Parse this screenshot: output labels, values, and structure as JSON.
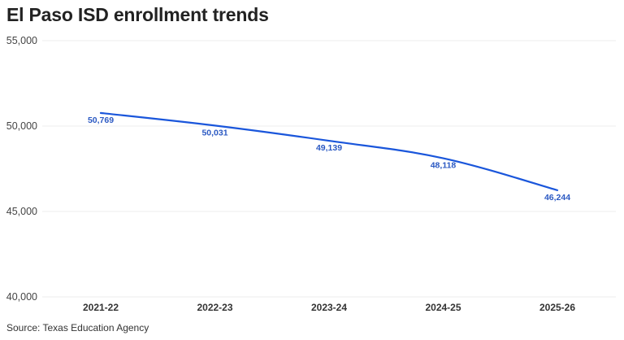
{
  "chart_data": {
    "type": "line",
    "title": "El Paso ISD enrollment trends",
    "categories": [
      "2021-22",
      "2022-23",
      "2023-24",
      "2024-25",
      "2025-26"
    ],
    "series": [
      {
        "values": [
          50769,
          50031,
          49139,
          48118,
          46244
        ],
        "labels": [
          "50,769",
          "50,031",
          "49,139",
          "48,118",
          "46,244"
        ]
      }
    ],
    "y_ticks": [
      40000,
      45000,
      50000,
      55000
    ],
    "y_tick_labels": [
      "40,000",
      "45,000",
      "50,000",
      "55,000"
    ],
    "ylim": [
      40000,
      55000
    ],
    "xlabel": "",
    "ylabel": "",
    "grid": true,
    "source": "Source: Texas Education Agency",
    "colors": {
      "line": "#1a56db",
      "label": "#2b59c3",
      "grid": "#ececec"
    }
  }
}
